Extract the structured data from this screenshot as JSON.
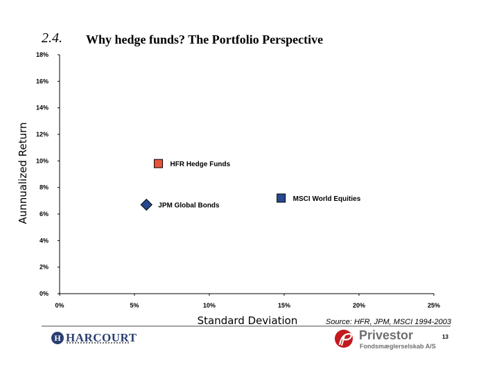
{
  "header": {
    "section_number": "2.4.",
    "title": "Why hedge funds? The Portfolio Perspective"
  },
  "chart_data": {
    "type": "scatter",
    "title": "Why hedge funds? The Portfolio Perspective",
    "xlabel": "Standard Deviation",
    "ylabel": "Aunnualized Return",
    "xlim": [
      0,
      25
    ],
    "ylim": [
      0,
      18
    ],
    "x_ticks": [
      {
        "value": 0,
        "label": "0%"
      },
      {
        "value": 5,
        "label": "5%"
      },
      {
        "value": 10,
        "label": "10%"
      },
      {
        "value": 15,
        "label": "15%"
      },
      {
        "value": 20,
        "label": "20%"
      },
      {
        "value": 25,
        "label": "25%"
      }
    ],
    "y_ticks": [
      {
        "value": 0,
        "label": "0%"
      },
      {
        "value": 2,
        "label": "2%"
      },
      {
        "value": 4,
        "label": "4%"
      },
      {
        "value": 6,
        "label": "6%"
      },
      {
        "value": 8,
        "label": "8%"
      },
      {
        "value": 10,
        "label": "10%"
      },
      {
        "value": 12,
        "label": "12%"
      },
      {
        "value": 14,
        "label": "14%"
      },
      {
        "value": 16,
        "label": "16%"
      },
      {
        "value": 18,
        "label": "18%"
      }
    ],
    "grid": false,
    "legend": "none",
    "points": [
      {
        "label": "HFR Hedge Funds",
        "x": 6.6,
        "y": 9.8,
        "marker": "square",
        "color": "#e8533a"
      },
      {
        "label": "JPM Global Bonds",
        "x": 5.8,
        "y": 6.7,
        "marker": "diamond",
        "color": "#27488f"
      },
      {
        "label": "MSCI World Equities",
        "x": 14.8,
        "y": 7.2,
        "marker": "square",
        "color": "#27488f"
      }
    ]
  },
  "source_note": "Source: HFR, JPM, MSCI 1994-2003",
  "footer": {
    "left_logo_text": "HARCOURT",
    "left_logo_mark": "H",
    "right_logo_name": "Privestor",
    "right_logo_subtitle": "Fondsmæglerselskab A/S",
    "page_number": "13"
  }
}
